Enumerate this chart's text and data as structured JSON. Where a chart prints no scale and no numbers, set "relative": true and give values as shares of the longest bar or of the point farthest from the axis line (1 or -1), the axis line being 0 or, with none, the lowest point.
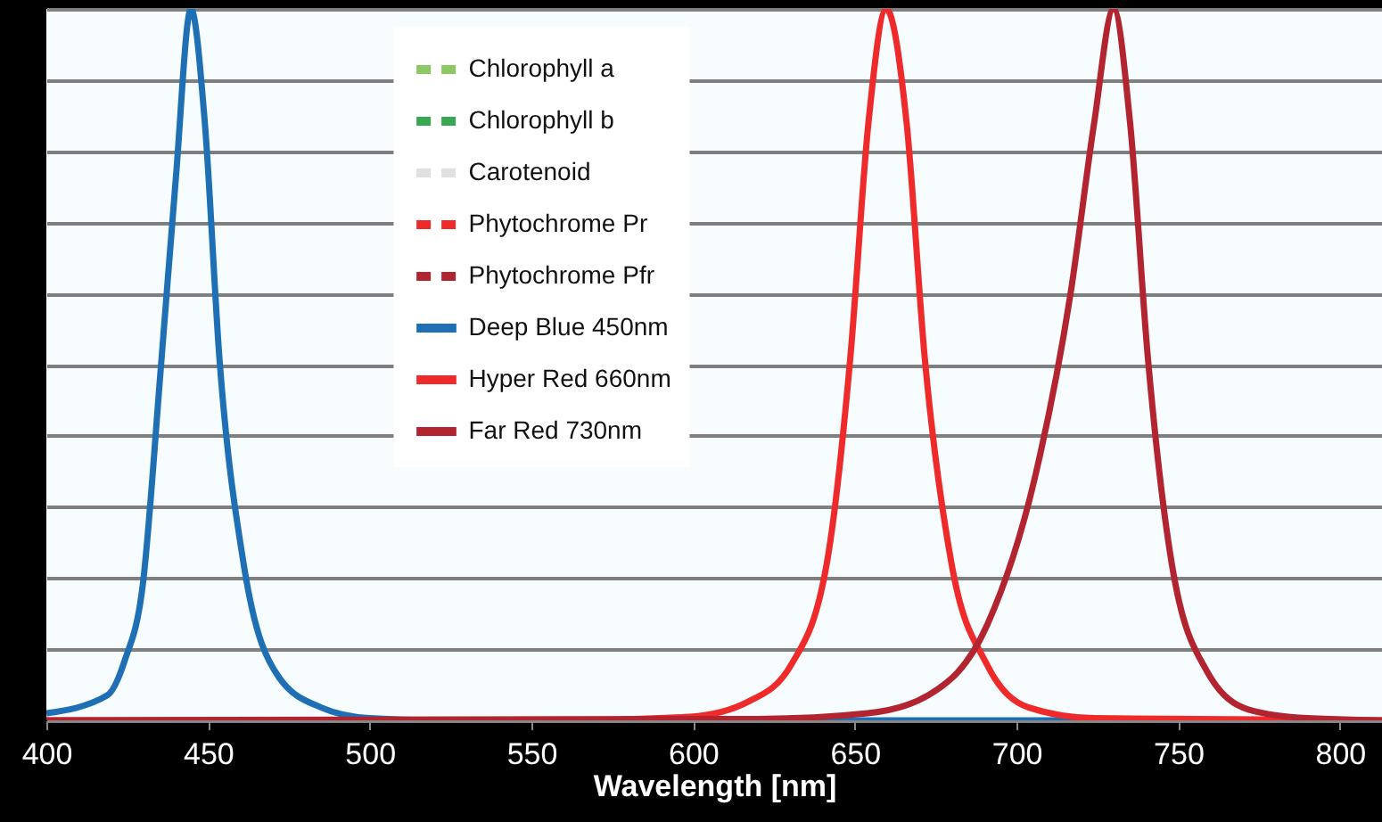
{
  "chart_data": {
    "type": "line",
    "relative": true,
    "xlabel": "Wavelength [nm]",
    "xlim": [
      400,
      813
    ],
    "xticks": [
      400,
      450,
      500,
      550,
      600,
      650,
      700,
      750,
      800
    ],
    "grid": "y",
    "legend": "top",
    "marker": "none",
    "series": [
      {
        "name": "Chlorophyll a",
        "color": "#8dc963",
        "line_style": "dashed"
      },
      {
        "name": "Chlorophyll b",
        "color": "#38a752",
        "line_style": "dashed"
      },
      {
        "name": "Carotenoid",
        "color": "#e0e0e0",
        "line_style": "dashed"
      },
      {
        "name": "Phytochrome Pr",
        "color": "#ee2a2a",
        "line_style": "dashed"
      },
      {
        "name": "Phytochrome Pfr",
        "color": "#b22530",
        "line_style": "dashed"
      },
      {
        "name": "Deep Blue 450nm",
        "color": "#1f6fb5",
        "line_style": "solid",
        "x": [
          400,
          418.8,
          424.3,
          429.8,
          435.3,
          440,
          444.7,
          449,
          453.5,
          461,
          472,
          485,
          500,
          520,
          720
        ],
        "values": [
          0.01,
          0.035,
          0.085,
          0.19,
          0.49,
          0.76,
          1,
          0.84,
          0.51,
          0.22,
          0.06,
          0.018,
          0.003,
          0,
          0
        ]
      },
      {
        "name": "Hyper Red 660nm",
        "color": "#ee2a2a",
        "line_style": "solid",
        "x": [
          400,
          560,
          599,
          617.4,
          630.3,
          641.3,
          648.6,
          654.2,
          659.7,
          666,
          671.6,
          679.9,
          690.9,
          703.8,
          724,
          813
        ],
        "values": [
          0,
          0,
          0.005,
          0.027,
          0.078,
          0.22,
          0.51,
          0.84,
          1,
          0.84,
          0.51,
          0.22,
          0.078,
          0.018,
          0.003,
          0
        ]
      },
      {
        "name": "Far Red 730nm",
        "color": "#b22530",
        "line_style": "solid",
        "x": [
          400,
          620,
          654,
          672.6,
          691,
          705.6,
          716.7,
          724,
          730,
          735.1,
          740.6,
          748,
          759,
          771.9,
          790,
          813
        ],
        "values": [
          0,
          0.002,
          0.01,
          0.035,
          0.135,
          0.34,
          0.6,
          0.84,
          1,
          0.84,
          0.51,
          0.22,
          0.068,
          0.015,
          0.003,
          0
        ]
      }
    ]
  }
}
